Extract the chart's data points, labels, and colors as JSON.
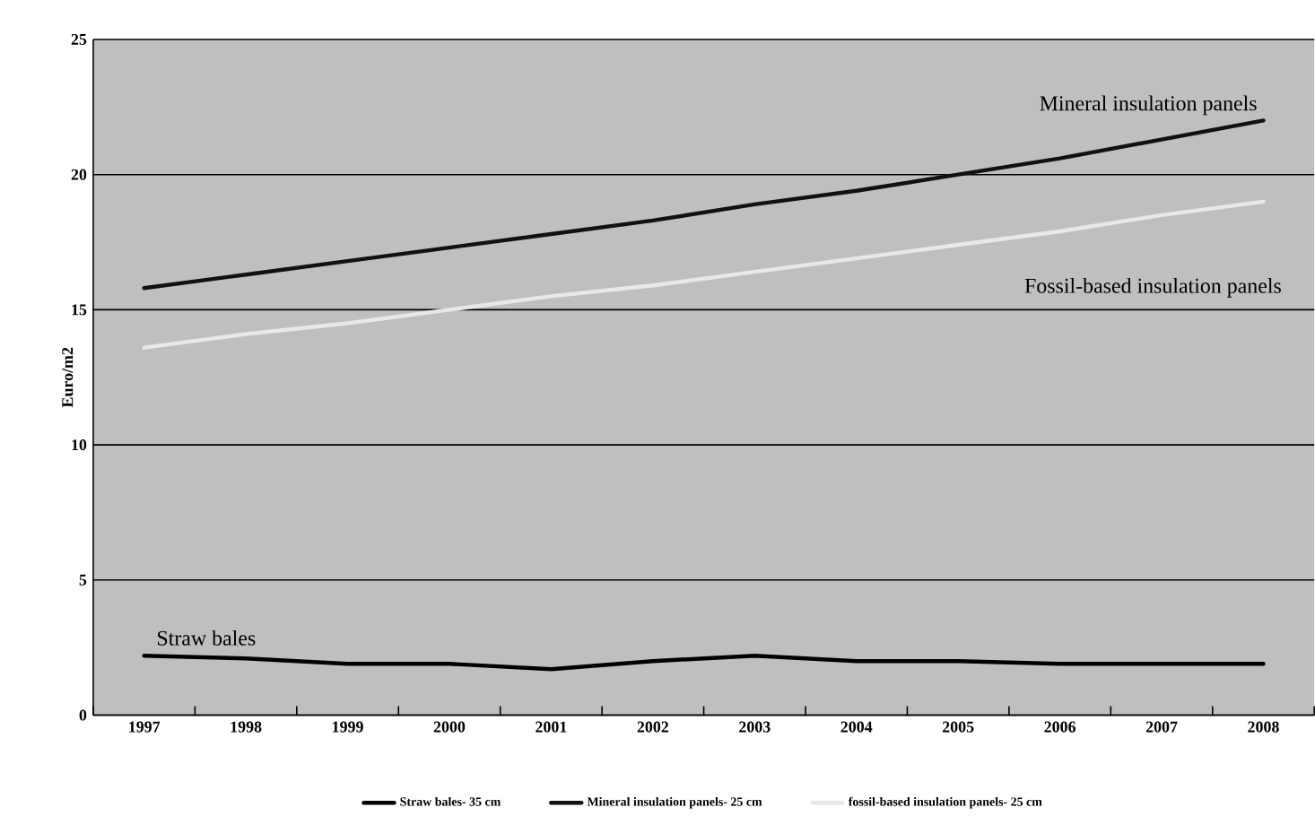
{
  "chart_data": {
    "type": "line",
    "ylabel": "Euro/m2",
    "categories": [
      "1997",
      "1998",
      "1999",
      "2000",
      "2001",
      "2002",
      "2003",
      "2004",
      "2005",
      "2006",
      "2007",
      "2008"
    ],
    "series": [
      {
        "name": "Straw bales- 35 cm",
        "color": "#000000",
        "values": [
          2.2,
          2.1,
          1.9,
          1.9,
          1.7,
          2.0,
          2.2,
          2.0,
          2.0,
          1.9,
          1.9,
          1.9
        ]
      },
      {
        "name": "Mineral insulation panels- 25 cm",
        "color": "#111111",
        "values": [
          15.8,
          16.3,
          16.8,
          17.3,
          17.8,
          18.3,
          18.9,
          19.4,
          20.0,
          20.6,
          21.3,
          22.0
        ]
      },
      {
        "name": "fossil-based insulation panels- 25 cm",
        "color": "#e8e8e8",
        "values": [
          13.6,
          14.1,
          14.5,
          15.0,
          15.5,
          15.9,
          16.4,
          16.9,
          17.4,
          17.9,
          18.5,
          19.0
        ]
      }
    ],
    "ylim": [
      0,
      25
    ],
    "yticks": [
      0,
      5,
      10,
      15,
      20,
      25
    ],
    "grid": "y",
    "legend": "bottom",
    "marker": "none",
    "line_style": "solid",
    "annotations": [
      "Mineral insulation panels",
      "Fossil-based insulation panels",
      "Straw bales"
    ]
  }
}
